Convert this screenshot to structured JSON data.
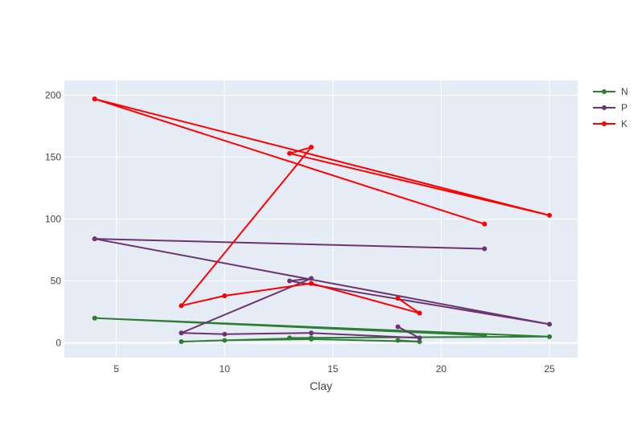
{
  "chart_data": {
    "type": "line",
    "xlabel": "Clay",
    "ylabel": "",
    "xlim": [
      2.6,
      26.3
    ],
    "ylim": [
      -12,
      212
    ],
    "x_ticks": [
      5,
      10,
      15,
      20,
      25
    ],
    "y_ticks": [
      0,
      50,
      100,
      150,
      200
    ],
    "grid": true,
    "legend_position": "top-right",
    "x": [
      4,
      22,
      4,
      25,
      13,
      14,
      8,
      10,
      14,
      19,
      18
    ],
    "series": [
      {
        "name": "N",
        "color": "#2e7d32",
        "values": [
          20,
          6,
          20,
          5,
          4,
          4,
          1,
          2,
          3,
          1,
          2
        ]
      },
      {
        "name": "P",
        "color": "#6a3570",
        "values": [
          84,
          76,
          84,
          15,
          50,
          52,
          8,
          7,
          8,
          4,
          13
        ]
      },
      {
        "name": "K",
        "color": "#ff0000",
        "values": [
          197,
          96,
          197,
          103,
          153,
          158,
          30,
          38,
          48,
          24,
          36
        ]
      }
    ]
  }
}
